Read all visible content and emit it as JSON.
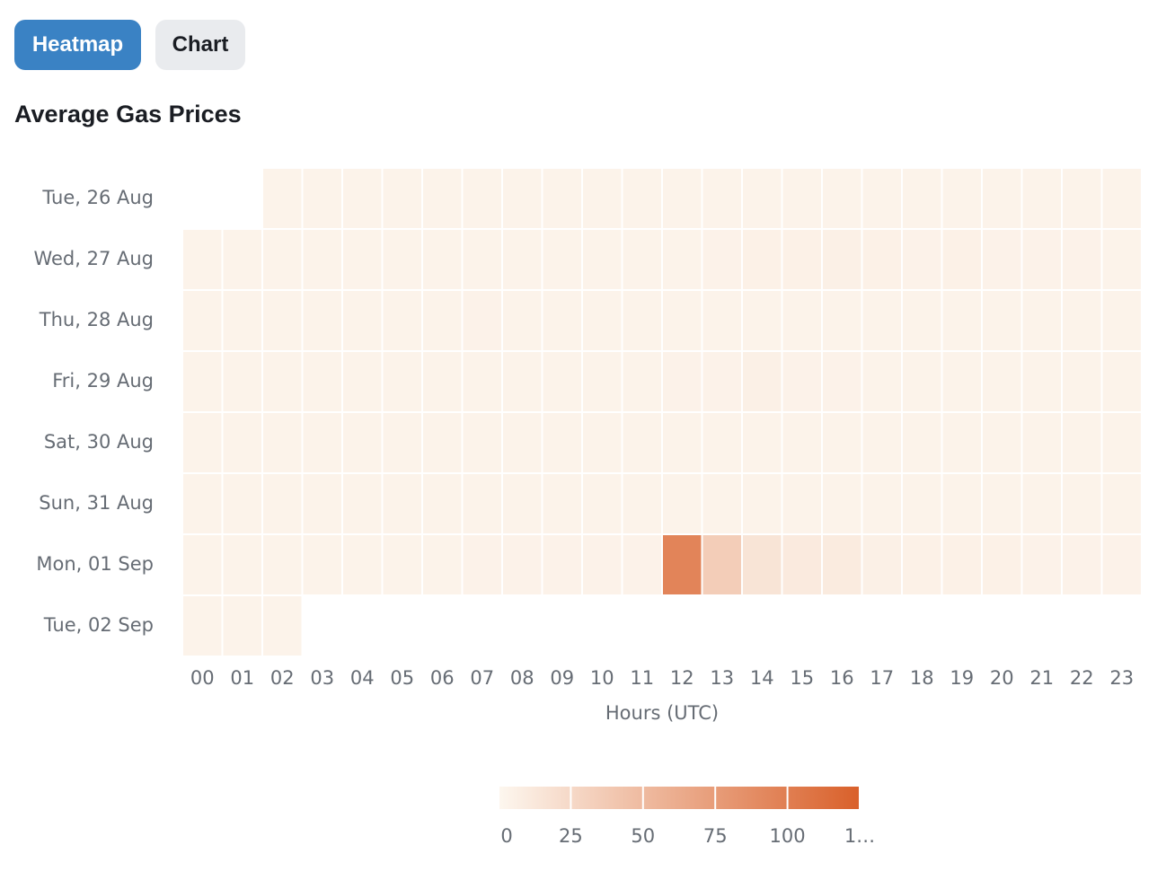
{
  "tabs": [
    {
      "label": "Heatmap",
      "active": true
    },
    {
      "label": "Chart",
      "active": false
    }
  ],
  "chart_data": {
    "type": "heatmap",
    "title": "Average Gas Prices",
    "x_label": "Hours (UTC)",
    "x": [
      "00",
      "01",
      "02",
      "03",
      "04",
      "05",
      "06",
      "07",
      "08",
      "09",
      "10",
      "11",
      "12",
      "13",
      "14",
      "15",
      "16",
      "17",
      "18",
      "19",
      "20",
      "21",
      "22",
      "23"
    ],
    "y": [
      "Tue, 26 Aug",
      "Wed, 27 Aug",
      "Thu, 28 Aug",
      "Fri, 29 Aug",
      "Sat, 30 Aug",
      "Sun, 31 Aug",
      "Mon, 01 Sep",
      "Tue, 02 Sep"
    ],
    "values": [
      [
        null,
        null,
        3,
        3,
        3,
        3,
        3,
        3,
        3,
        3,
        3,
        3,
        3,
        3,
        3,
        3,
        3,
        3,
        3,
        3,
        3,
        3,
        3,
        3
      ],
      [
        3,
        3,
        3,
        3,
        3,
        3,
        3,
        3,
        3,
        3,
        3,
        3,
        3,
        4,
        5,
        5,
        6,
        5,
        4,
        5,
        4,
        4,
        4,
        3
      ],
      [
        3,
        3,
        3,
        3,
        3,
        3,
        3,
        4,
        3,
        3,
        3,
        3,
        3,
        3,
        3,
        3,
        3,
        3,
        3,
        3,
        3,
        3,
        3,
        3
      ],
      [
        3,
        3,
        3,
        3,
        3,
        3,
        3,
        3,
        3,
        3,
        3,
        3,
        4,
        4,
        6,
        4,
        4,
        3,
        3,
        3,
        3,
        3,
        3,
        3
      ],
      [
        3,
        3,
        3,
        3,
        3,
        3,
        3,
        3,
        3,
        3,
        3,
        3,
        3,
        3,
        3,
        3,
        3,
        3,
        3,
        3,
        3,
        3,
        3,
        3
      ],
      [
        3,
        3,
        3,
        3,
        3,
        3,
        3,
        3,
        3,
        3,
        3,
        3,
        3,
        3,
        3,
        3,
        3,
        3,
        3,
        3,
        3,
        3,
        3,
        3
      ],
      [
        3,
        3,
        3,
        3,
        3,
        3,
        3,
        4,
        4,
        4,
        4,
        4,
        95,
        35,
        16,
        11,
        10,
        6,
        5,
        5,
        5,
        4,
        4,
        4
      ],
      [
        3,
        3,
        3,
        null,
        null,
        null,
        null,
        null,
        null,
        null,
        null,
        null,
        null,
        null,
        null,
        null,
        null,
        null,
        null,
        null,
        null,
        null,
        null,
        null
      ]
    ],
    "color_range": [
      "#fdf7ef",
      "#d9602a"
    ],
    "clim": [
      0,
      125
    ],
    "legend_ticks": [
      0,
      25,
      50,
      75,
      100,
      {
        "value": 125,
        "label": "1…"
      }
    ]
  }
}
